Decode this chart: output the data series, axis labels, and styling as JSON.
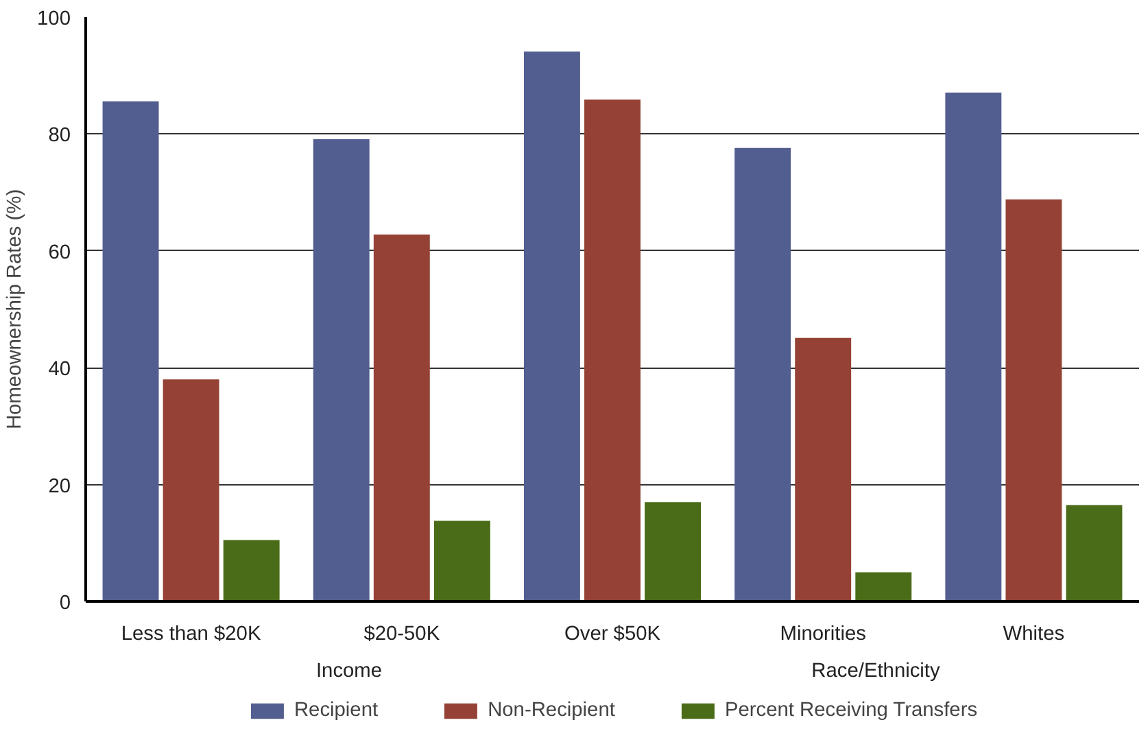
{
  "chart_data": {
    "type": "bar",
    "ylabel": "Homeownership Rates (%)",
    "categories": [
      "Less than $20K",
      "$20-50K",
      "Over $50K",
      "Minorities",
      "Whites"
    ],
    "series": [
      {
        "name": "Recipient",
        "color": "#525e8f",
        "values": [
          85.6,
          79.1,
          94.1,
          77.6,
          87.1
        ]
      },
      {
        "name": "Non-Recipient",
        "color": "#954135",
        "values": [
          38.0,
          62.8,
          85.9,
          45.1,
          68.8
        ]
      },
      {
        "name": "Percent Receiving Transfers",
        "color": "#4a6b17",
        "values": [
          10.5,
          13.8,
          17.0,
          5.0,
          16.5
        ]
      }
    ],
    "annotations": [
      "Income",
      "Race/Ethnicity"
    ],
    "ylim": [
      0,
      100
    ],
    "yticks": [
      0,
      20,
      40,
      60,
      80,
      100
    ],
    "grid": "y",
    "legend": "bottom"
  }
}
